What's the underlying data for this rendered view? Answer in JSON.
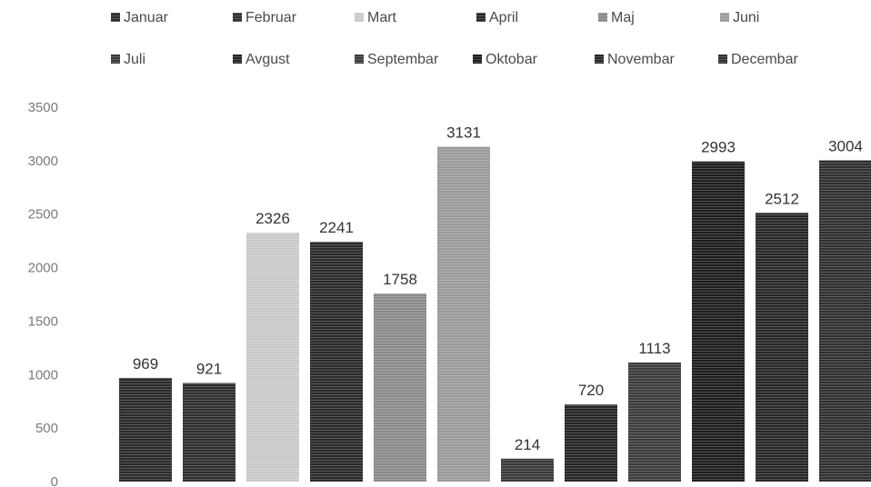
{
  "chart_data": {
    "type": "bar",
    "title": "",
    "xlabel": "",
    "ylabel": "",
    "ylim": [
      0,
      3500
    ],
    "yticks": [
      0,
      500,
      1000,
      1500,
      2000,
      2500,
      3000,
      3500
    ],
    "grid": false,
    "legend_position": "top",
    "series": [
      {
        "name": "Januar",
        "value": 969,
        "color": "#2b2b2b"
      },
      {
        "name": "Februar",
        "value": 921,
        "color": "#2f2f2f"
      },
      {
        "name": "Mart",
        "value": 2326,
        "color": "#c9c9c9"
      },
      {
        "name": "April",
        "value": 2241,
        "color": "#2a2a2a"
      },
      {
        "name": "Maj",
        "value": 1758,
        "color": "#8a8a8a"
      },
      {
        "name": "Juni",
        "value": 3131,
        "color": "#9a9a9a"
      },
      {
        "name": "Juli",
        "value": 214,
        "color": "#3a3a3a"
      },
      {
        "name": "Avgust",
        "value": 720,
        "color": "#262626"
      },
      {
        "name": "Septembar",
        "value": 1113,
        "color": "#3c3c3c"
      },
      {
        "name": "Oktobar",
        "value": 2993,
        "color": "#1e1e1e"
      },
      {
        "name": "Novembar",
        "value": 2512,
        "color": "#282828"
      },
      {
        "name": "Decembar",
        "value": 3004,
        "color": "#303030"
      }
    ]
  }
}
